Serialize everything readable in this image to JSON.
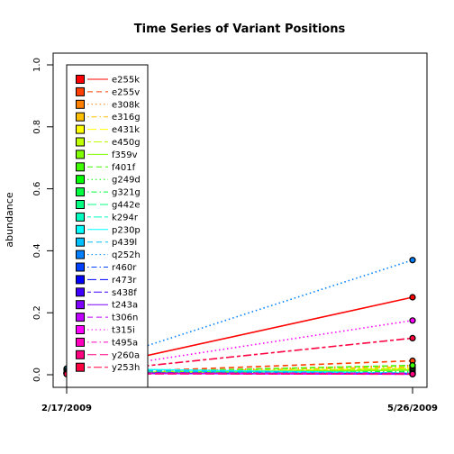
{
  "chart_data": {
    "type": "line",
    "title": "Time Series of Variant Positions",
    "xlabel": "",
    "ylabel": "abundance",
    "x": [
      "2/17/2009",
      "5/26/2009"
    ],
    "ylim": [
      0,
      1
    ],
    "yticks": [
      "0.0",
      "0.2",
      "0.4",
      "0.6",
      "0.8",
      "1.0"
    ],
    "grid": false,
    "legend_position": "top-left",
    "series": [
      {
        "name": "e255k",
        "color": "#FF0000",
        "dash": "solid",
        "values": [
          0.005,
          0.25
        ]
      },
      {
        "name": "e255v",
        "color": "#FF4000",
        "dash": "dashed",
        "values": [
          0.003,
          0.045
        ]
      },
      {
        "name": "e308k",
        "color": "#FF8000",
        "dash": "dotted",
        "values": [
          0.005,
          0.03
        ]
      },
      {
        "name": "e316g",
        "color": "#FFBF00",
        "dash": "dotdash",
        "values": [
          0.004,
          0.025
        ]
      },
      {
        "name": "e431k",
        "color": "#FFFF00",
        "dash": "longdash",
        "values": [
          0.004,
          0.02
        ]
      },
      {
        "name": "e450g",
        "color": "#BFFF00",
        "dash": "twodash",
        "values": [
          0.004,
          0.02
        ]
      },
      {
        "name": "f359v",
        "color": "#80FF00",
        "dash": "solid",
        "values": [
          0.005,
          0.015
        ]
      },
      {
        "name": "f401f",
        "color": "#40FF00",
        "dash": "dashed",
        "values": [
          0.005,
          0.03
        ]
      },
      {
        "name": "g249d",
        "color": "#00FF00",
        "dash": "dotted",
        "values": [
          0.005,
          0.01
        ]
      },
      {
        "name": "g321g",
        "color": "#00FF40",
        "dash": "dotdash",
        "values": [
          0.005,
          0.01
        ]
      },
      {
        "name": "g442e",
        "color": "#00FF80",
        "dash": "longdash",
        "values": [
          0.005,
          0.005
        ]
      },
      {
        "name": "k294r",
        "color": "#00FFBF",
        "dash": "twodash",
        "values": [
          0.005,
          0.005
        ]
      },
      {
        "name": "p230p",
        "color": "#00FFFF",
        "dash": "solid",
        "values": [
          0.02,
          0.005
        ]
      },
      {
        "name": "p439l",
        "color": "#00BFFF",
        "dash": "dashed",
        "values": [
          0.015,
          0.005
        ]
      },
      {
        "name": "q252h",
        "color": "#0080FF",
        "dash": "dotted",
        "values": [
          0.01,
          0.37
        ]
      },
      {
        "name": "r460r",
        "color": "#0040FF",
        "dash": "dotdash",
        "values": [
          0.008,
          0.003
        ]
      },
      {
        "name": "r473r",
        "color": "#0000FF",
        "dash": "longdash",
        "values": [
          0.006,
          0.003
        ]
      },
      {
        "name": "s438f",
        "color": "#4000FF",
        "dash": "twodash",
        "values": [
          0.005,
          0.003
        ]
      },
      {
        "name": "t243a",
        "color": "#8000FF",
        "dash": "solid",
        "values": [
          0.005,
          0.002
        ]
      },
      {
        "name": "t306n",
        "color": "#BF00FF",
        "dash": "dashed",
        "values": [
          0.005,
          0.002
        ]
      },
      {
        "name": "t315i",
        "color": "#FF00FF",
        "dash": "dotted",
        "values": [
          0.005,
          0.175
        ]
      },
      {
        "name": "t495a",
        "color": "#FF00BF",
        "dash": "dotdash",
        "values": [
          0.005,
          0.005
        ]
      },
      {
        "name": "y260a",
        "color": "#FF0080",
        "dash": "longdash",
        "values": [
          0.003,
          0.002
        ]
      },
      {
        "name": "y253h",
        "color": "#FF0040",
        "dash": "twodash",
        "values": [
          0.002,
          0.118
        ]
      }
    ]
  }
}
